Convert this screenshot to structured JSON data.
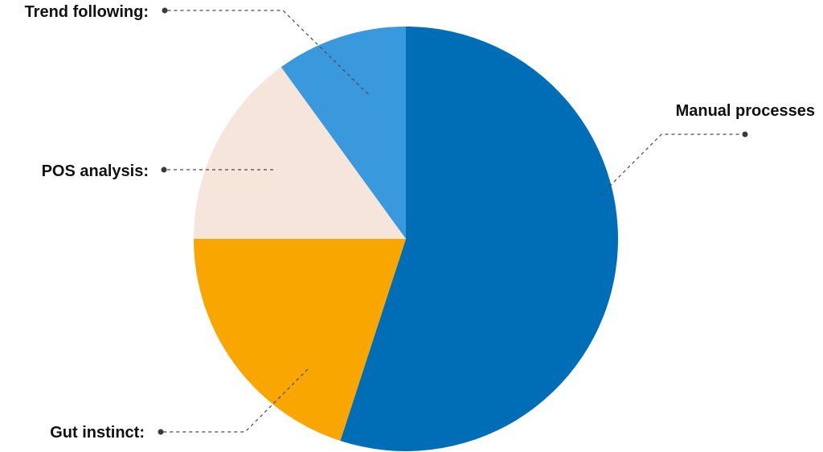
{
  "chart_data": {
    "type": "pie",
    "title": "",
    "slices": [
      {
        "label": "Manual processes",
        "value": 55,
        "color": "#006DB7"
      },
      {
        "label": "Gut instinct:",
        "value": 20,
        "color": "#F9A600"
      },
      {
        "label": "POS analysis:",
        "value": 15,
        "color": "#F6E5DA"
      },
      {
        "label": "Trend following:",
        "value": 10,
        "color": "#3A98DD"
      }
    ],
    "start_angle_deg": 0,
    "direction": "clockwise",
    "legend": "callouts"
  }
}
